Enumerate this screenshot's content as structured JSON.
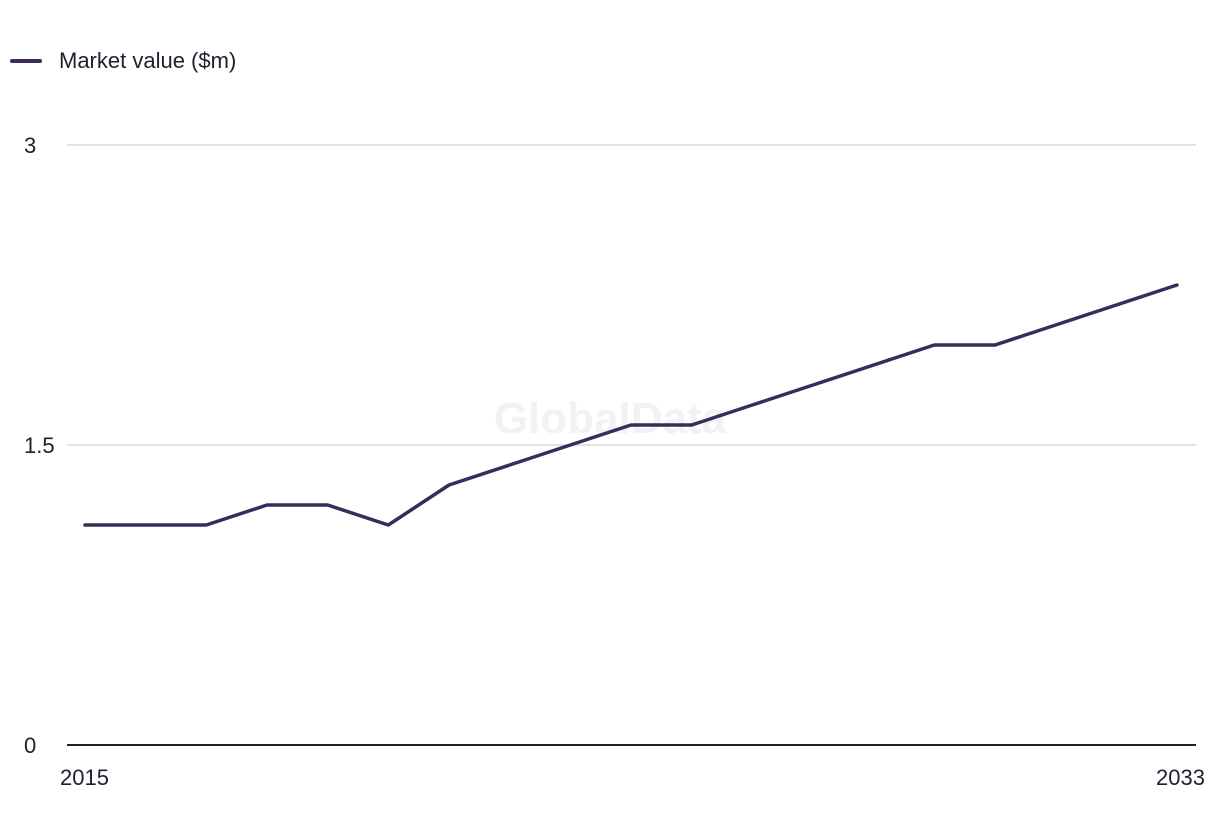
{
  "legend": {
    "label": "Market value ($m)"
  },
  "watermark": "GlobalData",
  "colors": {
    "series": "#3b2a5a",
    "grid": "#d9d9de",
    "axis": "#1f1f2e"
  },
  "chart_data": {
    "type": "line",
    "x": [
      2015,
      2016,
      2017,
      2018,
      2019,
      2020,
      2021,
      2022,
      2023,
      2024,
      2025,
      2026,
      2027,
      2028,
      2029,
      2030,
      2031,
      2032,
      2033
    ],
    "series": [
      {
        "name": "Market value ($m)",
        "values": [
          1.1,
          1.1,
          1.1,
          1.2,
          1.2,
          1.1,
          1.3,
          1.4,
          1.5,
          1.6,
          1.6,
          1.7,
          1.8,
          1.9,
          2.0,
          2.0,
          2.1,
          2.2,
          2.3
        ]
      }
    ],
    "x_tick_labels": [
      "2015",
      "2033"
    ],
    "y_ticks": [
      0,
      1.5,
      3
    ],
    "y_tick_labels": [
      "0",
      "1.5",
      "3"
    ],
    "ylim": [
      0,
      3
    ],
    "xlim": [
      2015,
      2033
    ],
    "grid": true,
    "legend_position": "top-left"
  }
}
